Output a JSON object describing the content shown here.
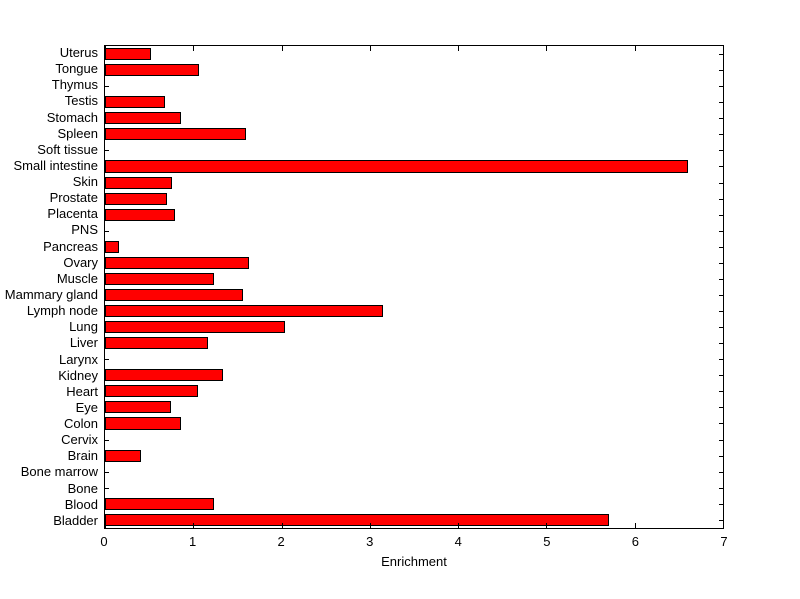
{
  "chart_data": {
    "type": "bar",
    "orientation": "horizontal",
    "title": "",
    "xlabel": "Enrichment",
    "ylabel": "",
    "xlim": [
      0,
      7
    ],
    "xticks": [
      0,
      1,
      2,
      3,
      4,
      5,
      6,
      7
    ],
    "xtick_labels": [
      "0",
      "1",
      "2",
      "3",
      "4",
      "5",
      "6",
      "7"
    ],
    "grid": false,
    "legend": null,
    "bar_color": "#ff0000",
    "bar_edge_color": "#000000",
    "background_color": "#ffffff",
    "categories": [
      "Uterus",
      "Tongue",
      "Thymus",
      "Testis",
      "Stomach",
      "Spleen",
      "Soft tissue",
      "Small intestine",
      "Skin",
      "Prostate",
      "Placenta",
      "PNS",
      "Pancreas",
      "Ovary",
      "Muscle",
      "Mammary gland",
      "Lymph node",
      "Lung",
      "Liver",
      "Larynx",
      "Kidney",
      "Heart",
      "Eye",
      "Colon",
      "Cervix",
      "Brain",
      "Bone marrow",
      "Bone",
      "Blood",
      "Bladder"
    ],
    "values": [
      0.52,
      1.07,
      0,
      0.68,
      0.86,
      1.6,
      0,
      6.6,
      0.76,
      0.7,
      0.79,
      0,
      0.16,
      1.63,
      1.23,
      1.56,
      3.15,
      2.04,
      1.17,
      0,
      1.34,
      1.05,
      0.75,
      0.86,
      0,
      0.41,
      0,
      0,
      1.23,
      5.71
    ]
  }
}
